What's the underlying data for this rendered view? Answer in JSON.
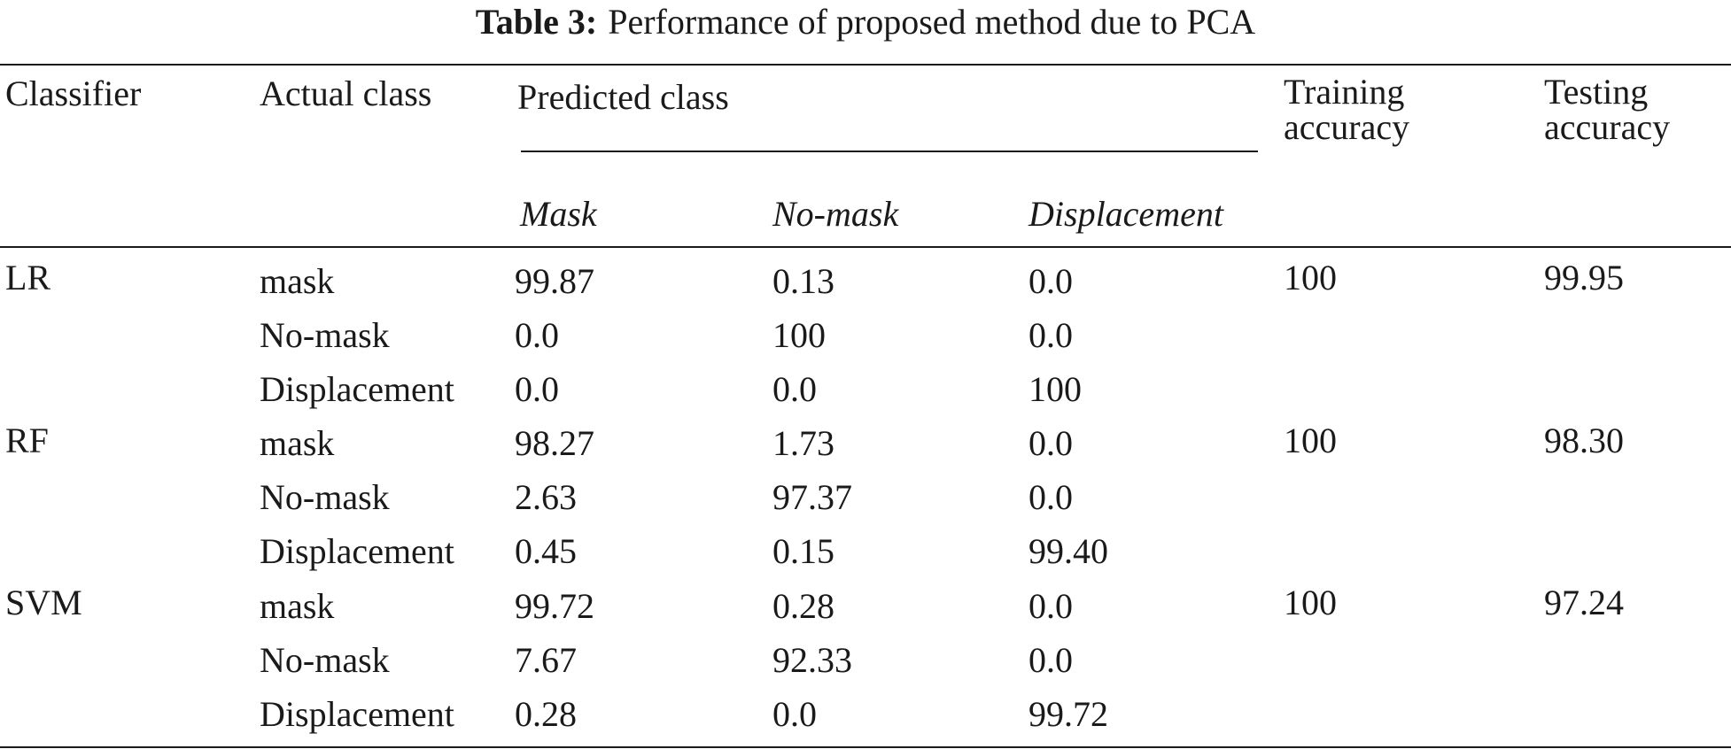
{
  "caption": {
    "label": "Table 3:",
    "text": "Performance of proposed method due to PCA"
  },
  "header": {
    "classifier": "Classifier",
    "actual_class": "Actual class",
    "predicted_class": "Predicted class",
    "training_accuracy": "Training accuracy",
    "testing_accuracy": "Testing accuracy",
    "predicted_sub": [
      "Mask",
      "No-mask",
      "Displacement"
    ]
  },
  "groups": [
    {
      "classifier": "LR",
      "training": "100",
      "testing": "99.95",
      "rows": [
        {
          "actual": "mask",
          "values": [
            "99.87",
            "0.13",
            "0.0"
          ]
        },
        {
          "actual": "No-mask",
          "values": [
            "0.0",
            "100",
            "0.0"
          ]
        },
        {
          "actual": "Displacement",
          "values": [
            "0.0",
            "0.0",
            "100"
          ]
        }
      ]
    },
    {
      "classifier": "RF",
      "training": "100",
      "testing": "98.30",
      "rows": [
        {
          "actual": "mask",
          "values": [
            "98.27",
            "1.73",
            "0.0"
          ]
        },
        {
          "actual": "No-mask",
          "values": [
            "2.63",
            "97.37",
            "0.0"
          ]
        },
        {
          "actual": "Displacement",
          "values": [
            "0.45",
            "0.15",
            "99.40"
          ]
        }
      ]
    },
    {
      "classifier": "SVM",
      "training": "100",
      "testing": "97.24",
      "rows": [
        {
          "actual": "mask",
          "values": [
            "99.72",
            "0.28",
            "0.0"
          ]
        },
        {
          "actual": "No-mask",
          "values": [
            "7.67",
            "92.33",
            "0.0"
          ]
        },
        {
          "actual": "Displacement",
          "values": [
            "0.28",
            "0.0",
            "99.72"
          ]
        }
      ]
    }
  ]
}
